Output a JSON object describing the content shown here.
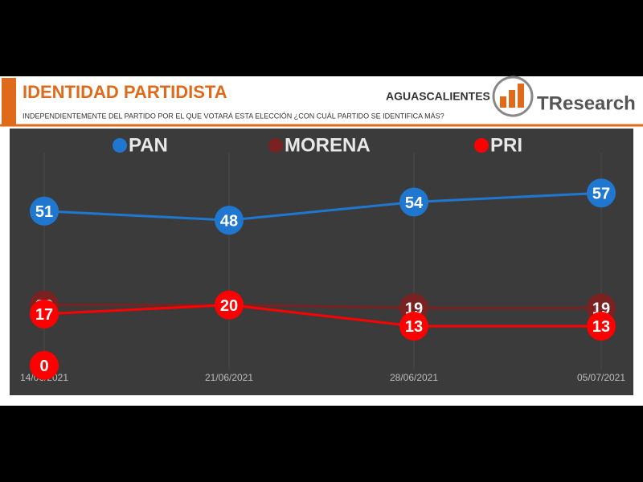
{
  "header": {
    "title": "IDENTIDAD PARTIDISTA",
    "subtitle": "INDEPENDIENTEMENTE DEL PARTIDO POR EL QUE VOTARÁ ESTA ELECCIÓN ¿CON CUÁL PARTIDO SE IDENTIFICA MÁS?",
    "region": "AGUASCALIENTES",
    "brand": "TResearch"
  },
  "chart_data": {
    "type": "line",
    "categories": [
      "14/06/2021",
      "21/06/2021",
      "28/06/2021",
      "05/07/2021"
    ],
    "series": [
      {
        "name": "PAN",
        "color": "#1f77d0",
        "values": [
          51,
          48,
          54,
          57
        ]
      },
      {
        "name": "MORENA",
        "color": "#7a2222",
        "values": [
          20,
          20,
          19,
          19
        ]
      },
      {
        "name": "PRI",
        "color": "#ff0000",
        "values": [
          17,
          20,
          13,
          13
        ]
      }
    ],
    "annotations": [
      {
        "value": 0,
        "color": "#ff0000"
      }
    ],
    "ylim": [
      -4,
      69
    ]
  }
}
